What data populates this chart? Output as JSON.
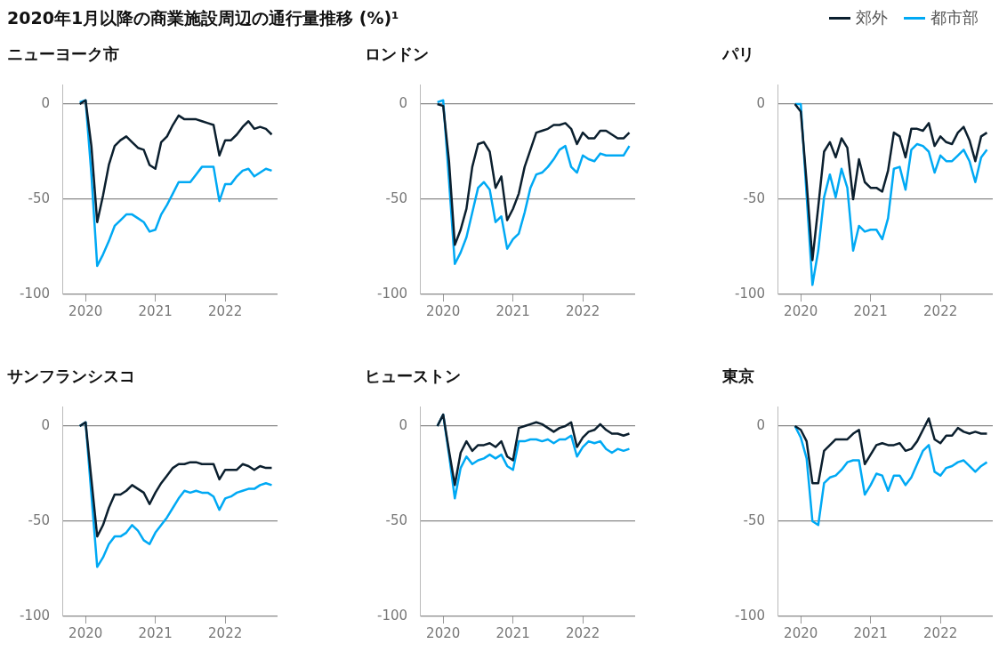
{
  "chart_data": [
    {
      "type": "line",
      "subtitle": "2020年1月以降の商業施設周辺の通行量推移 (%)¹",
      "title": "ニューヨーク市",
      "legend": "top right",
      "grid": "y",
      "xlim": [
        "2019-09",
        "2022-10"
      ],
      "xticks": [
        "2020",
        "2021",
        "2022"
      ],
      "ylim": [
        -100,
        10
      ],
      "yticks": [
        0,
        -50,
        -100
      ],
      "x": [
        "2019-12",
        "2020-01",
        "2020-02",
        "2020-03",
        "2020-04",
        "2020-05",
        "2020-06",
        "2020-07",
        "2020-08",
        "2020-09",
        "2020-10",
        "2020-11",
        "2020-12",
        "2021-01",
        "2021-02",
        "2021-03",
        "2021-04",
        "2021-05",
        "2021-06",
        "2021-07",
        "2021-08",
        "2021-09",
        "2021-10",
        "2021-11",
        "2021-12",
        "2022-01",
        "2022-02",
        "2022-03",
        "2022-04",
        "2022-05",
        "2022-06",
        "2022-07",
        "2022-08",
        "2022-09"
      ],
      "series": [
        {
          "name": "郊外",
          "color": "#0b1f2e",
          "values": [
            0,
            2,
            -22,
            -62,
            -48,
            -32,
            -22,
            -19,
            -17,
            -20,
            -23,
            -24,
            -32,
            -34,
            -20,
            -17,
            -11,
            -6,
            -8,
            -8,
            -8,
            -9,
            -10,
            -11,
            -27,
            -19,
            -19,
            -16,
            -12,
            -9,
            -13,
            -12,
            -13,
            -16
          ]
        },
        {
          "name": "都市部",
          "color": "#00a9f4",
          "values": [
            1,
            2,
            -37,
            -85,
            -79,
            -72,
            -64,
            -61,
            -58,
            -58,
            -60,
            -62,
            -67,
            -66,
            -58,
            -53,
            -47,
            -41,
            -41,
            -41,
            -37,
            -33,
            -33,
            -33,
            -51,
            -42,
            -42,
            -38,
            -35,
            -34,
            -38,
            -36,
            -34,
            -35
          ]
        }
      ]
    },
    {
      "type": "line",
      "title": "ロンドン",
      "grid": "y",
      "xlim": [
        "2019-09",
        "2022-10"
      ],
      "xticks": [
        "2020",
        "2021",
        "2022"
      ],
      "ylim": [
        -100,
        10
      ],
      "yticks": [
        0,
        -50,
        -100
      ],
      "x": [
        "2019-12",
        "2020-01",
        "2020-02",
        "2020-03",
        "2020-04",
        "2020-05",
        "2020-06",
        "2020-07",
        "2020-08",
        "2020-09",
        "2020-10",
        "2020-11",
        "2020-12",
        "2021-01",
        "2021-02",
        "2021-03",
        "2021-04",
        "2021-05",
        "2021-06",
        "2021-07",
        "2021-08",
        "2021-09",
        "2021-10",
        "2021-11",
        "2021-12",
        "2022-01",
        "2022-02",
        "2022-03",
        "2022-04",
        "2022-05",
        "2022-06",
        "2022-07",
        "2022-08",
        "2022-09"
      ],
      "series": [
        {
          "color": "#0b1f2e",
          "values": [
            0,
            -1,
            -30,
            -74,
            -66,
            -55,
            -33,
            -21,
            -20,
            -25,
            -44,
            -38,
            -61,
            -55,
            -47,
            -33,
            -24,
            -15,
            -14,
            -13,
            -11,
            -11,
            -10,
            -13,
            -21,
            -15,
            -18,
            -18,
            -14,
            -14,
            -16,
            -18,
            -18,
            -15
          ]
        },
        {
          "color": "#00a9f4",
          "values": [
            1,
            2,
            -40,
            -84,
            -78,
            -70,
            -57,
            -44,
            -41,
            -45,
            -62,
            -59,
            -76,
            -71,
            -68,
            -57,
            -44,
            -37,
            -36,
            -33,
            -29,
            -24,
            -22,
            -33,
            -36,
            -27,
            -29,
            -30,
            -26,
            -27,
            -27,
            -27,
            -27,
            -22
          ]
        }
      ]
    },
    {
      "type": "line",
      "title": "パリ",
      "grid": "y",
      "xlim": [
        "2019-09",
        "2022-10"
      ],
      "xticks": [
        "2020",
        "2021",
        "2022"
      ],
      "ylim": [
        -100,
        10
      ],
      "yticks": [
        0,
        -50,
        -100
      ],
      "x": [
        "2019-12",
        "2020-01",
        "2020-02",
        "2020-03",
        "2020-04",
        "2020-05",
        "2020-06",
        "2020-07",
        "2020-08",
        "2020-09",
        "2020-10",
        "2020-11",
        "2020-12",
        "2021-01",
        "2021-02",
        "2021-03",
        "2021-04",
        "2021-05",
        "2021-06",
        "2021-07",
        "2021-08",
        "2021-09",
        "2021-10",
        "2021-11",
        "2021-12",
        "2022-01",
        "2022-02",
        "2022-03",
        "2022-04",
        "2022-05",
        "2022-06",
        "2022-07",
        "2022-08",
        "2022-09"
      ],
      "series": [
        {
          "color": "#0b1f2e",
          "values": [
            0,
            -4,
            -41,
            -82,
            -54,
            -25,
            -20,
            -28,
            -18,
            -23,
            -50,
            -29,
            -41,
            -44,
            -44,
            -46,
            -35,
            -15,
            -17,
            -28,
            -13,
            -13,
            -14,
            -10,
            -22,
            -17,
            -20,
            -21,
            -15,
            -12,
            -19,
            -30,
            -17,
            -15
          ]
        },
        {
          "color": "#00a9f4",
          "values": [
            0,
            0,
            -48,
            -95,
            -77,
            -49,
            -37,
            -49,
            -34,
            -44,
            -77,
            -64,
            -67,
            -66,
            -66,
            -71,
            -60,
            -34,
            -33,
            -45,
            -24,
            -21,
            -22,
            -25,
            -36,
            -27,
            -30,
            -30,
            -27,
            -24,
            -30,
            -41,
            -28,
            -24
          ]
        }
      ]
    },
    {
      "type": "line",
      "title": "サンフランシスコ",
      "grid": "y",
      "xlim": [
        "2019-09",
        "2022-10"
      ],
      "xticks": [
        "2020",
        "2021",
        "2022"
      ],
      "ylim": [
        -100,
        10
      ],
      "yticks": [
        0,
        -50,
        -100
      ],
      "x": [
        "2019-12",
        "2020-01",
        "2020-02",
        "2020-03",
        "2020-04",
        "2020-05",
        "2020-06",
        "2020-07",
        "2020-08",
        "2020-09",
        "2020-10",
        "2020-11",
        "2020-12",
        "2021-01",
        "2021-02",
        "2021-03",
        "2021-04",
        "2021-05",
        "2021-06",
        "2021-07",
        "2021-08",
        "2021-09",
        "2021-10",
        "2021-11",
        "2021-12",
        "2022-01",
        "2022-02",
        "2022-03",
        "2022-04",
        "2022-05",
        "2022-06",
        "2022-07",
        "2022-08",
        "2022-09"
      ],
      "series": [
        {
          "color": "#0b1f2e",
          "values": [
            0,
            2,
            -28,
            -58,
            -52,
            -43,
            -36,
            -36,
            -34,
            -31,
            -33,
            -35,
            -41,
            -35,
            -30,
            -26,
            -22,
            -20,
            -20,
            -19,
            -19,
            -20,
            -20,
            -20,
            -28,
            -23,
            -23,
            -23,
            -20,
            -21,
            -23,
            -21,
            -22,
            -22
          ]
        },
        {
          "color": "#00a9f4",
          "values": [
            0,
            2,
            -36,
            -74,
            -69,
            -62,
            -58,
            -58,
            -56,
            -52,
            -55,
            -60,
            -62,
            -56,
            -52,
            -48,
            -43,
            -38,
            -34,
            -35,
            -34,
            -35,
            -35,
            -37,
            -44,
            -38,
            -37,
            -35,
            -34,
            -33,
            -33,
            -31,
            -30,
            -31
          ]
        }
      ]
    },
    {
      "type": "line",
      "title": "ヒューストン",
      "grid": "y",
      "xlim": [
        "2019-09",
        "2022-10"
      ],
      "xticks": [
        "2020",
        "2021",
        "2022"
      ],
      "ylim": [
        -100,
        10
      ],
      "yticks": [
        0,
        -50,
        -100
      ],
      "x": [
        "2019-12",
        "2020-01",
        "2020-02",
        "2020-03",
        "2020-04",
        "2020-05",
        "2020-06",
        "2020-07",
        "2020-08",
        "2020-09",
        "2020-10",
        "2020-11",
        "2020-12",
        "2021-01",
        "2021-02",
        "2021-03",
        "2021-04",
        "2021-05",
        "2021-06",
        "2021-07",
        "2021-08",
        "2021-09",
        "2021-10",
        "2021-11",
        "2021-12",
        "2022-01",
        "2022-02",
        "2022-03",
        "2022-04",
        "2022-05",
        "2022-06",
        "2022-07",
        "2022-08",
        "2022-09"
      ],
      "series": [
        {
          "color": "#0b1f2e",
          "values": [
            0,
            6,
            -13,
            -31,
            -14,
            -8,
            -13,
            -10,
            -10,
            -9,
            -11,
            -8,
            -16,
            -18,
            -1,
            0,
            1,
            2,
            1,
            -1,
            -3,
            -1,
            0,
            2,
            -11,
            -6,
            -3,
            -2,
            1,
            -2,
            -4,
            -4,
            -5,
            -4
          ]
        },
        {
          "color": "#00a9f4",
          "values": [
            0,
            6,
            -15,
            -38,
            -22,
            -16,
            -20,
            -18,
            -17,
            -15,
            -17,
            -15,
            -21,
            -23,
            -8,
            -8,
            -7,
            -7,
            -8,
            -7,
            -9,
            -7,
            -7,
            -5,
            -16,
            -11,
            -8,
            -9,
            -8,
            -12,
            -14,
            -12,
            -13,
            -12
          ]
        }
      ]
    },
    {
      "type": "line",
      "title": "東京",
      "grid": "y",
      "xlim": [
        "2019-09",
        "2022-10"
      ],
      "xticks": [
        "2020",
        "2021",
        "2022"
      ],
      "ylim": [
        -100,
        10
      ],
      "yticks": [
        0,
        -50,
        -100
      ],
      "x": [
        "2019-12",
        "2020-01",
        "2020-02",
        "2020-03",
        "2020-04",
        "2020-05",
        "2020-06",
        "2020-07",
        "2020-08",
        "2020-09",
        "2020-10",
        "2020-11",
        "2020-12",
        "2021-01",
        "2021-02",
        "2021-03",
        "2021-04",
        "2021-05",
        "2021-06",
        "2021-07",
        "2021-08",
        "2021-09",
        "2021-10",
        "2021-11",
        "2021-12",
        "2022-01",
        "2022-02",
        "2022-03",
        "2022-04",
        "2022-05",
        "2022-06",
        "2022-07",
        "2022-08",
        "2022-09"
      ],
      "series": [
        {
          "color": "#0b1f2e",
          "values": [
            0,
            -2,
            -8,
            -30,
            -30,
            -13,
            -10,
            -7,
            -7,
            -7,
            -4,
            -2,
            -20,
            -15,
            -10,
            -9,
            -10,
            -10,
            -9,
            -13,
            -12,
            -8,
            -2,
            4,
            -7,
            -9,
            -5,
            -5,
            -1,
            -3,
            -4,
            -3,
            -4,
            -4
          ]
        },
        {
          "color": "#00a9f4",
          "values": [
            0,
            -6,
            -17,
            -50,
            -52,
            -30,
            -27,
            -26,
            -23,
            -19,
            -18,
            -18,
            -36,
            -31,
            -25,
            -26,
            -34,
            -26,
            -26,
            -31,
            -27,
            -20,
            -13,
            -10,
            -24,
            -26,
            -22,
            -21,
            -19,
            -18,
            -21,
            -24,
            -21,
            -19
          ]
        }
      ]
    }
  ]
}
